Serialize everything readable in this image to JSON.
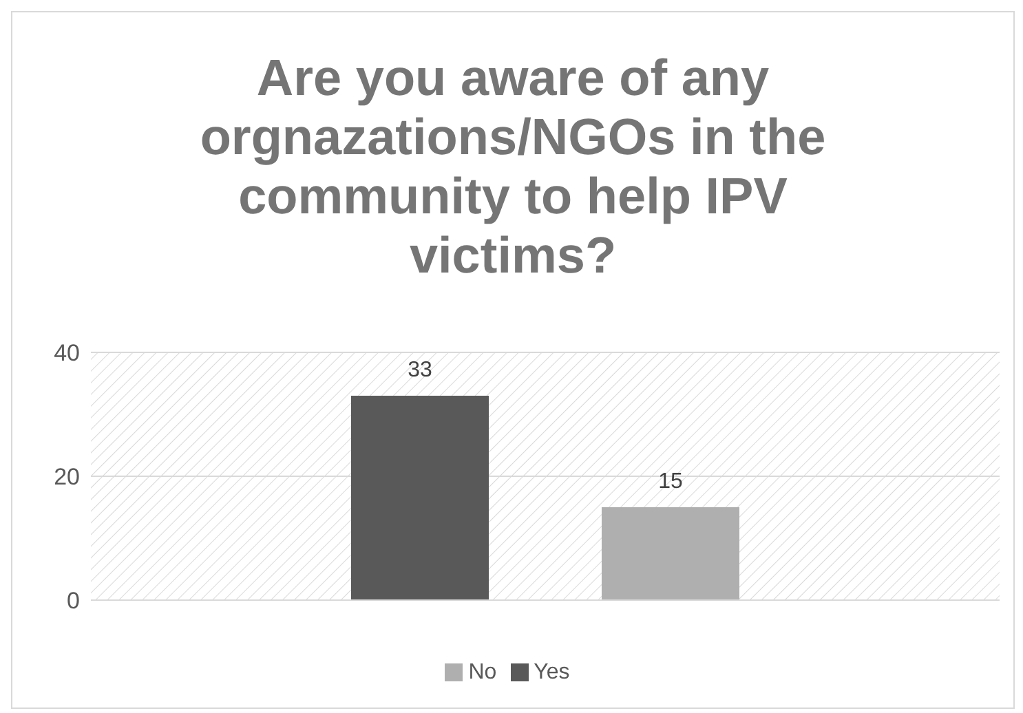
{
  "chart_data": {
    "type": "bar",
    "title": "Are you aware of any orgnazations/NGOs in the community to help IPV victims?",
    "categories": [
      null
    ],
    "series": [
      {
        "name": "Yes",
        "color": "#595959",
        "values": [
          33
        ]
      },
      {
        "name": "No",
        "color": "#afafaf",
        "values": [
          15
        ]
      }
    ],
    "ylim": [
      0,
      40
    ],
    "yticks": [
      0,
      20,
      40
    ],
    "grid": "y",
    "data_labels": true,
    "legend": "bottom"
  }
}
